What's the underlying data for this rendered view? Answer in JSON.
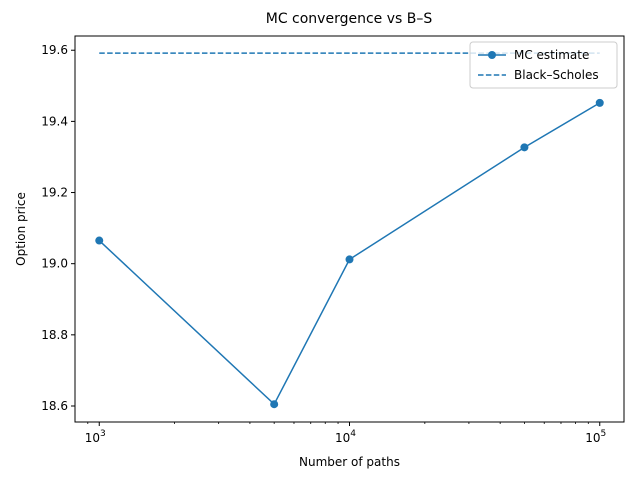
{
  "chart_data": {
    "type": "line",
    "title": "MC convergence vs B–S",
    "xlabel": "Number of paths",
    "ylabel": "Option price",
    "xscale": "log",
    "xlim": [
      800,
      125000
    ],
    "ylim": [
      18.555,
      19.64
    ],
    "x_ticks": [
      {
        "value": 1000,
        "base": "10",
        "exp": "3"
      },
      {
        "value": 10000,
        "base": "10",
        "exp": "4"
      },
      {
        "value": 100000,
        "base": "10",
        "exp": "5"
      }
    ],
    "y_ticks": [
      18.6,
      18.8,
      19.0,
      19.2,
      19.4,
      19.6
    ],
    "y_tick_labels": [
      "18.6",
      "18.8",
      "19.0",
      "19.2",
      "19.4",
      "19.6"
    ],
    "grid": false,
    "legend_position": "top-right",
    "colors": {
      "series": "#1f77b4"
    },
    "series": [
      {
        "name": "MC estimate",
        "style": "solid-marker",
        "x": [
          1000,
          5000,
          10000,
          50000,
          100000
        ],
        "y": [
          19.065,
          18.605,
          19.012,
          19.327,
          19.452
        ]
      },
      {
        "name": "Black–Scholes",
        "style": "dashed",
        "x": [
          1000,
          100000
        ],
        "y": [
          19.592,
          19.592
        ]
      }
    ]
  }
}
